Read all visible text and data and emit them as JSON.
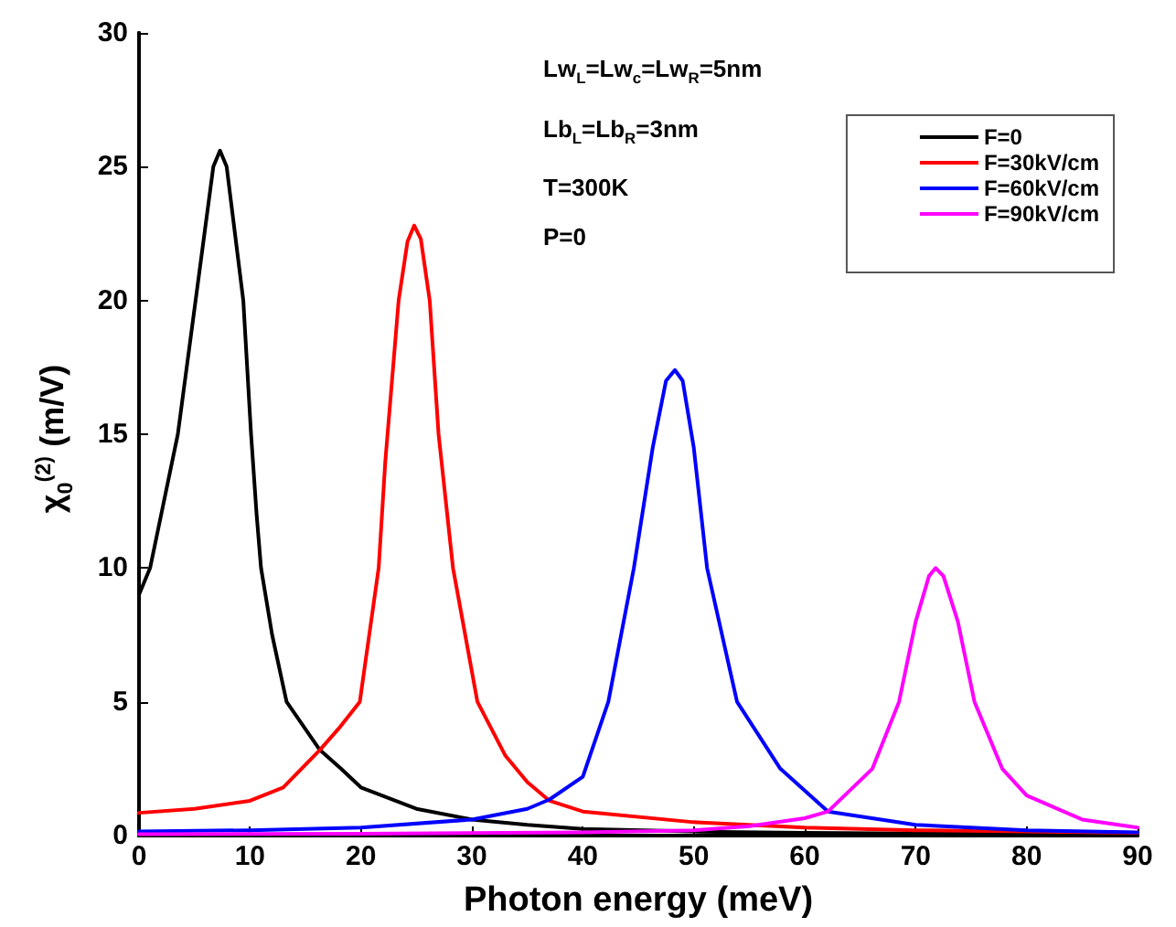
{
  "chart_data": {
    "type": "line",
    "xlabel": "Photon energy (meV)",
    "ylabel": "χ$_{0}$$^{(2)}$ (m/V)",
    "annotations": [
      "Lw$_{L}$=Lw$_{c}$=Lw$_{R}$=5nm",
      "Lb$_{L}$=Lb$_{R}$=3nm",
      "T=300K",
      "P=0"
    ],
    "xlim": [
      0,
      90
    ],
    "xticks": [
      0,
      10,
      20,
      30,
      40,
      50,
      60,
      70,
      80,
      90
    ],
    "ylim": [
      0,
      30
    ],
    "yticks": [
      0,
      5,
      10,
      15,
      20,
      25,
      30
    ],
    "grid": false,
    "legend": "top right",
    "marker": "none",
    "line_style": "solid",
    "series": [
      {
        "name": "F=0",
        "color": "#000000",
        "x": [
          0,
          1,
          2,
          3.5,
          5.1,
          6.7,
          7.3,
          7.9,
          9.4,
          10.1,
          10.6,
          11,
          12,
          13.3,
          16.3,
          18.2,
          20,
          25,
          30,
          35,
          40,
          50,
          60,
          70,
          80,
          90
        ],
        "values": [
          9,
          10,
          12,
          15,
          20,
          25,
          25.6,
          25,
          20,
          15,
          12,
          10,
          7.5,
          5,
          3.2,
          2.5,
          1.8,
          1,
          0.6,
          0.4,
          0.25,
          0.15,
          0.1,
          0.08,
          0.06,
          0.05
        ]
      },
      {
        "name": "F=30kV/cm",
        "color": "#ff0000",
        "x": [
          0,
          5,
          10,
          13,
          16.3,
          18,
          19.9,
          21.6,
          22.2,
          23.4,
          24.2,
          24.8,
          25.4,
          26.2,
          27,
          28.3,
          30.5,
          33,
          35,
          37,
          40,
          50,
          60,
          70,
          80,
          90
        ],
        "values": [
          0.85,
          1,
          1.3,
          1.8,
          3.2,
          4,
          5,
          10,
          14,
          20,
          22.2,
          22.8,
          22.3,
          20,
          15,
          10,
          5,
          3,
          2,
          1.3,
          0.9,
          0.5,
          0.3,
          0.2,
          0.15,
          0.1
        ]
      },
      {
        "name": "F=60kV/cm",
        "color": "#0000ff",
        "x": [
          0,
          10,
          20,
          30,
          35,
          37,
          40,
          42.3,
          44.6,
          46.3,
          47.5,
          48.3,
          49,
          50,
          51.2,
          53.9,
          57.8,
          62.1,
          70,
          80,
          90
        ],
        "values": [
          0.15,
          0.2,
          0.3,
          0.6,
          1,
          1.35,
          2.2,
          5,
          10,
          14.5,
          17,
          17.4,
          17,
          14.5,
          10,
          5,
          2.5,
          0.9,
          0.4,
          0.2,
          0.12
        ]
      },
      {
        "name": "F=90kV/cm",
        "color": "#ff00ff",
        "x": [
          0,
          20,
          40,
          50,
          55,
          60,
          62.1,
          66.1,
          68.5,
          70,
          71.2,
          71.8,
          72.5,
          73.8,
          75.3,
          77.8,
          80,
          85,
          90
        ],
        "values": [
          0.05,
          0.07,
          0.12,
          0.2,
          0.35,
          0.65,
          0.9,
          2.5,
          5,
          8,
          9.7,
          10,
          9.7,
          8,
          5,
          2.5,
          1.5,
          0.6,
          0.3
        ]
      }
    ]
  }
}
